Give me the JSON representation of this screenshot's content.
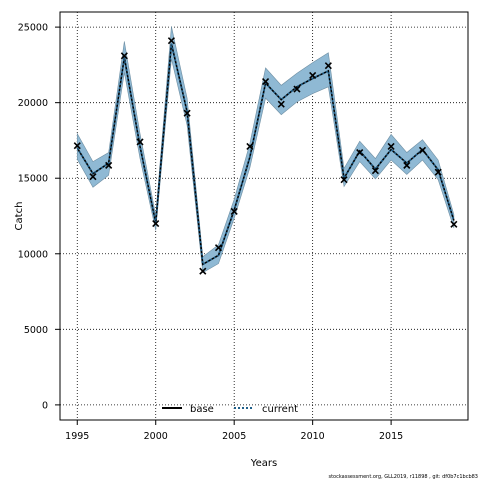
{
  "chart_data": {
    "type": "line",
    "title": "",
    "xlabel": "Years",
    "ylabel": "Catch",
    "xlim": [
      1993.9,
      2019.9
    ],
    "ylim": [
      -1000,
      26000
    ],
    "x_ticks": [
      1995,
      2000,
      2005,
      2010,
      2015
    ],
    "y_ticks": [
      0,
      5000,
      10000,
      15000,
      20000,
      25000
    ],
    "grid": true,
    "legend_position": "bottom-center",
    "x": [
      1995,
      1996,
      1997,
      1998,
      1999,
      2000,
      2001,
      2002,
      2003,
      2004,
      2005,
      2006,
      2007,
      2008,
      2009,
      2010,
      2011,
      2012,
      2013,
      2014,
      2015,
      2016,
      2017,
      2018,
      2019
    ],
    "observed": [
      17150,
      15100,
      15850,
      23100,
      17400,
      12000,
      24100,
      19300,
      8850,
      10400,
      12800,
      17100,
      21400,
      19900,
      20900,
      21800,
      22450,
      14900,
      16700,
      15500,
      17100,
      15850,
      16850,
      15400,
      11950
    ],
    "series": [
      {
        "name": "base",
        "color": "#000000",
        "values": [
          17000,
          15300,
          16000,
          23000,
          17100,
          12050,
          23900,
          19400,
          9300,
          9900,
          12900,
          16400,
          21300,
          20200,
          21050,
          21600,
          22100,
          15000,
          16800,
          15600,
          16900,
          16000,
          16900,
          15550,
          12200
        ]
      },
      {
        "name": "current",
        "color": "#1f5f8a",
        "values": [
          17000,
          15300,
          16000,
          23000,
          17100,
          12050,
          23900,
          19400,
          9300,
          9900,
          12900,
          16400,
          21300,
          20200,
          21050,
          21600,
          22100,
          15000,
          16800,
          15600,
          16900,
          16000,
          16900,
          15550,
          12200
        ],
        "lower": [
          16250,
          14400,
          15200,
          22000,
          16300,
          11550,
          22900,
          18500,
          8750,
          9350,
          12350,
          15700,
          20300,
          19200,
          20050,
          20600,
          21050,
          14450,
          16100,
          14950,
          16200,
          15250,
          16200,
          14900,
          11700
        ],
        "upper": [
          17950,
          16100,
          16700,
          24050,
          17950,
          12550,
          25050,
          20300,
          9800,
          10600,
          13600,
          17300,
          22300,
          21150,
          21950,
          22650,
          23300,
          15650,
          17450,
          16300,
          17900,
          16700,
          17550,
          16200,
          12600
        ],
        "band_color": "#8fb9d4"
      }
    ],
    "footnote": "stockassessment.org, GLL2019, r11898 , git: df0b7c1bcb83"
  }
}
